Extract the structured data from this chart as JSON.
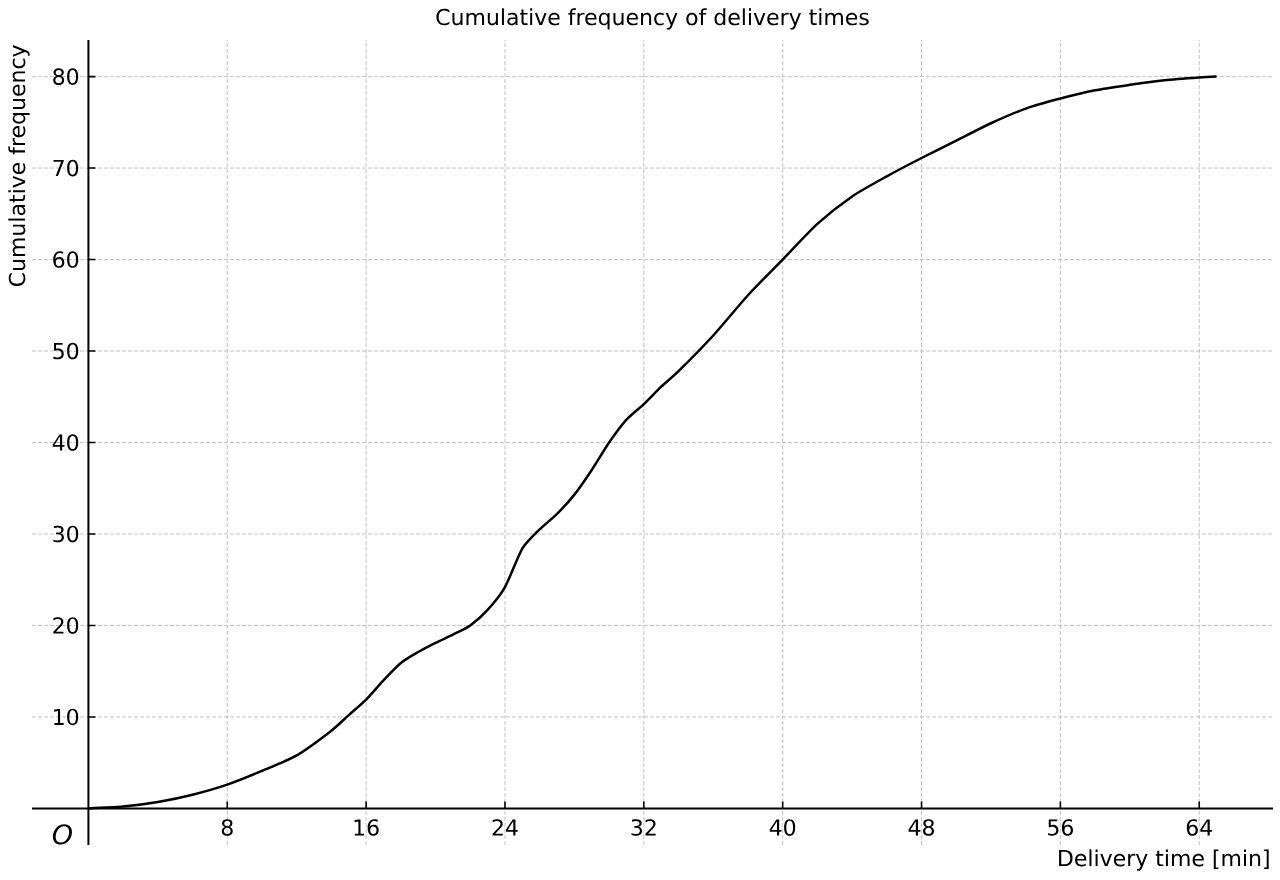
{
  "chart_data": {
    "type": "line",
    "title": "Cumulative frequency of delivery times",
    "xlabel": "Delivery time [min]",
    "ylabel": "Cumulative frequency",
    "annotations": [
      "O"
    ],
    "x": [
      0,
      2,
      4,
      6,
      8,
      10,
      12,
      14,
      15,
      16,
      17,
      18,
      19,
      20,
      21,
      22,
      23,
      24,
      25,
      26,
      27,
      28,
      29,
      30,
      31,
      32,
      33,
      34,
      36,
      38,
      40,
      42,
      44,
      46,
      48,
      50,
      52,
      54,
      56,
      58,
      60,
      62,
      64,
      65
    ],
    "series": [
      {
        "color": "#000000",
        "values": [
          0,
          0.2,
          0.7,
          1.5,
          2.6,
          4.1,
          5.8,
          8.5,
          10.2,
          11.9,
          14.0,
          15.9,
          17.1,
          18.1,
          19.0,
          20.0,
          21.7,
          24.2,
          28.4,
          30.5,
          32.2,
          34.3,
          37.0,
          40.0,
          42.5,
          44.2,
          46.1,
          47.8,
          51.7,
          56.1,
          60.0,
          63.9,
          66.9,
          69.1,
          71.1,
          73.0,
          74.9,
          76.5,
          77.6,
          78.5,
          79.1,
          79.6,
          79.9,
          80.0
        ]
      }
    ],
    "xlim": [
      -3.25,
      68.25
    ],
    "ylim": [
      -4,
      84
    ],
    "xticks": [
      8,
      16,
      24,
      32,
      40,
      48,
      56,
      64
    ],
    "yticks": [
      10,
      20,
      30,
      40,
      50,
      60,
      70,
      80
    ],
    "grid": true,
    "line_style": "solid"
  }
}
